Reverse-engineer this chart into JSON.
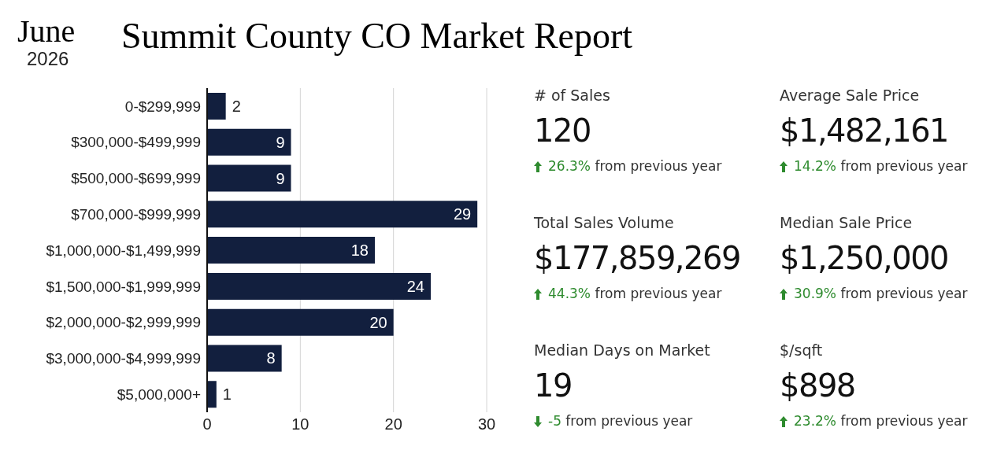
{
  "chart_data": [
    {
      "type": "bar",
      "orientation": "horizontal",
      "title": "Summit County CO Market Report",
      "annotations": [
        "June",
        "2026"
      ],
      "categories": [
        "0-$299,999",
        "$300,000-$499,999",
        "$500,000-$699,999",
        "$700,000-$999,999",
        "$1,000,000-$1,499,999",
        "$1,500,000-$1,999,999",
        "$2,000,000-$2,999,999",
        "$3,000,000-$4,999,999",
        "$5,000,000+"
      ],
      "values": [
        2,
        9,
        9,
        29,
        18,
        24,
        20,
        8,
        1
      ],
      "color": "#121f3e",
      "xlim": [
        0,
        30
      ],
      "xticks": [
        0,
        10,
        20,
        30
      ],
      "grid": "x",
      "data_labels": true,
      "legend": false
    },
    {
      "type": "other",
      "annotations": [
        "# of Sales",
        "120",
        "26.3% from previous year",
        "Average Sale Price",
        "$1,482,161",
        "14.2% from previous year",
        "Total Sales Volume",
        "$177,859,269",
        "44.3% from previous year",
        "Median Sale Price",
        "$1,250,000",
        "30.9% from previous year",
        "Median Days on Market",
        "19",
        "-5 from previous year",
        "$/sqft",
        "$898",
        "23.2% from previous year"
      ]
    }
  ]
}
